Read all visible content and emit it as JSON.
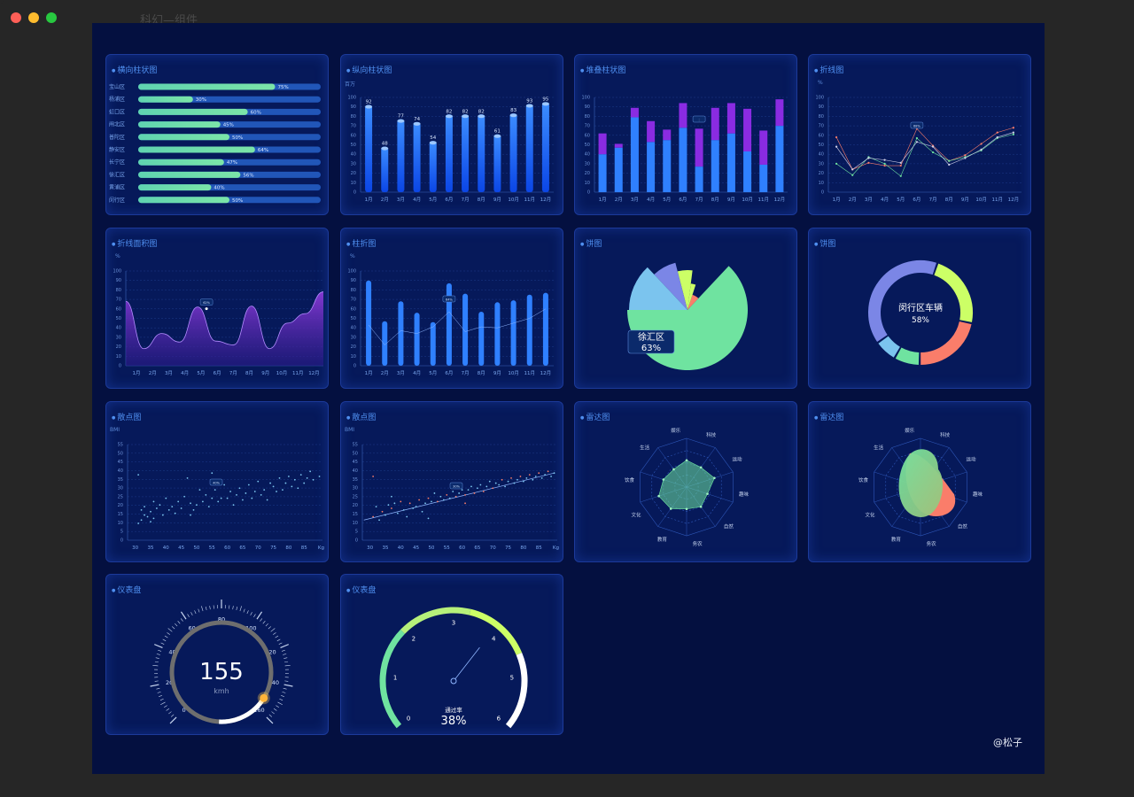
{
  "window": {
    "title": "科幻—组件"
  },
  "watermark": "@松子",
  "colors": {
    "bg": "#041040",
    "panel": "#06195a",
    "blue": "#2f80ff",
    "green": "#6fe3a0",
    "purple": "#8a2be2",
    "salmon": "#fa7d6a",
    "lime": "#ccff66",
    "slate": "#7b86e6",
    "sky": "#7bc4ee"
  },
  "panels": {
    "hbar": {
      "title": "横向柱状图"
    },
    "vbar": {
      "title": "纵向柱状图",
      "unit": "百万"
    },
    "stack": {
      "title": "堆叠柱状图"
    },
    "line": {
      "title": "折线图",
      "unit": "%"
    },
    "area": {
      "title": "折线面积图",
      "unit": "%"
    },
    "barline": {
      "title": "柱折图",
      "unit": "%"
    },
    "pie": {
      "title": "饼图"
    },
    "donut": {
      "title": "饼图"
    },
    "scatter1": {
      "title": "散点图",
      "unit": "BMI"
    },
    "scatter2": {
      "title": "散点图",
      "unit": "BMI"
    },
    "radar1": {
      "title": "雷达图"
    },
    "radar2": {
      "title": "雷达图"
    },
    "gauge1": {
      "title": "仪表盘"
    },
    "gauge2": {
      "title": "仪表盘"
    }
  },
  "chart_data": [
    {
      "id": "hbar",
      "type": "bar",
      "orientation": "horizontal",
      "categories": [
        "宝山区",
        "杨浦区",
        "虹口区",
        "闸北区",
        "普陀区",
        "静安区",
        "长宁区",
        "徐汇区",
        "黄浦区",
        "闵行区"
      ],
      "values": [
        75,
        30,
        60,
        45,
        50,
        64,
        47,
        56,
        40,
        50
      ],
      "labels": [
        "75%",
        "30%",
        "60%",
        "45%",
        "50%",
        "64%",
        "47%",
        "56%",
        "40%",
        "50%"
      ],
      "xlim": [
        0,
        100
      ]
    },
    {
      "id": "vbar",
      "type": "bar",
      "categories": [
        "1月",
        "2月",
        "3月",
        "4月",
        "5月",
        "6月",
        "7月",
        "8月",
        "9月",
        "10月",
        "11月",
        "12月"
      ],
      "values": [
        92,
        48,
        77,
        74,
        54,
        82,
        82,
        82,
        61,
        83,
        93,
        95
      ],
      "labels": [
        "92",
        "48",
        "77",
        "74",
        "54",
        "82",
        "82",
        "82",
        "61",
        "83",
        "93",
        "95"
      ],
      "ylabel": "百万",
      "ylim": [
        0,
        100
      ],
      "yticks": [
        "0",
        "10",
        "20",
        "30",
        "40",
        "50",
        "60",
        "70",
        "80",
        "90",
        "100"
      ]
    },
    {
      "id": "stack",
      "type": "bar",
      "stacked": true,
      "categories": [
        "1月",
        "2月",
        "3月",
        "4月",
        "5月",
        "6月",
        "7月",
        "8月",
        "9月",
        "10月",
        "11月",
        "12月"
      ],
      "series": [
        {
          "values": [
            40,
            47,
            79,
            53,
            55,
            68,
            27,
            55,
            62,
            43,
            29,
            70
          ]
        },
        {
          "values": [
            22,
            4,
            10,
            22,
            11,
            26,
            40,
            34,
            32,
            45,
            36,
            28
          ]
        }
      ],
      "tooltip": ":",
      "ylim": [
        0,
        100
      ],
      "yticks": [
        "0",
        "10",
        "20",
        "30",
        "40",
        "50",
        "60",
        "70",
        "80",
        "90",
        "100"
      ]
    },
    {
      "id": "line",
      "type": "line",
      "categories": [
        "1月",
        "2月",
        "3月",
        "4月",
        "5月",
        "6月",
        "7月",
        "8月",
        "9月",
        "10月",
        "11月",
        "12月"
      ],
      "series": [
        {
          "values": [
            58,
            24,
            31,
            28,
            28,
            67,
            49,
            33,
            39,
            51,
            63,
            68
          ]
        },
        {
          "values": [
            30,
            18,
            37,
            30,
            17,
            57,
            42,
            33,
            37,
            44,
            57,
            61
          ]
        },
        {
          "values": [
            48,
            24,
            36,
            34,
            31,
            53,
            48,
            29,
            36,
            45,
            58,
            63
          ]
        }
      ],
      "ylabel": "%",
      "ylim": [
        0,
        100
      ],
      "tooltip": "68%",
      "yticks": [
        "0",
        "10",
        "20",
        "30",
        "40",
        "50",
        "60",
        "70",
        "80",
        "90",
        "100"
      ]
    },
    {
      "id": "area",
      "type": "area",
      "categories": [
        "1月",
        "2月",
        "3月",
        "4月",
        "5月",
        "6月",
        "7月",
        "8月",
        "9月",
        "10月",
        "11月",
        "12月"
      ],
      "values": [
        68,
        18,
        34,
        25,
        62,
        26,
        22,
        63,
        18,
        45,
        55,
        78
      ],
      "ylabel": "%",
      "ylim": [
        0,
        100
      ],
      "tooltip": "62%",
      "yticks": [
        "0",
        "10",
        "20",
        "30",
        "40",
        "50",
        "60",
        "70",
        "80",
        "90",
        "100"
      ]
    },
    {
      "id": "barline",
      "type": "bar+line",
      "categories": [
        "1月",
        "2月",
        "3月",
        "4月",
        "5月",
        "6月",
        "7月",
        "8月",
        "9月",
        "10月",
        "11月",
        "12月"
      ],
      "bars": [
        90,
        47,
        68,
        56,
        46,
        87,
        76,
        57,
        67,
        69,
        75,
        77
      ],
      "line": [
        43,
        22,
        37,
        34,
        41,
        57,
        36,
        41,
        40,
        45,
        50,
        60
      ],
      "ylabel": "%",
      "ylim": [
        0,
        100
      ],
      "tooltip": "64%",
      "yticks": [
        "0",
        "10",
        "20",
        "30",
        "40",
        "50",
        "60",
        "70",
        "80",
        "90",
        "100"
      ]
    },
    {
      "id": "pie",
      "type": "pie",
      "rose": true,
      "slices": [
        {
          "value": 63,
          "radius": 68
        },
        {
          "value": 7,
          "radius": 18
        },
        {
          "value": 3,
          "radius": 30
        },
        {
          "value": 6,
          "radius": 45
        },
        {
          "value": 8,
          "radius": 55
        },
        {
          "value": 13,
          "radius": 66
        }
      ],
      "tooltip": {
        "name": "徐汇区",
        "value": "63%"
      }
    },
    {
      "id": "donut",
      "type": "pie",
      "donut": true,
      "slices": [
        {
          "value": 23
        },
        {
          "value": 22
        },
        {
          "value": 8
        },
        {
          "value": 7
        },
        {
          "value": 40
        }
      ],
      "center_label": "闵行区车辆",
      "center_value": "58%"
    },
    {
      "id": "scatter1",
      "type": "scatter",
      "xlabel": "Kg",
      "ylabel": "BMI",
      "xlim": [
        27.5,
        91
      ],
      "ylim": [
        0,
        57
      ],
      "xticks": [
        "30",
        "35",
        "40",
        "45",
        "50",
        "55",
        "60",
        "65",
        "70",
        "75",
        "80",
        "85"
      ],
      "yticks": [
        "0",
        "5",
        "10",
        "15",
        "20",
        "25",
        "30",
        "35",
        "40",
        "45",
        "50",
        "55"
      ],
      "tooltip": "40%",
      "points": [
        [
          31,
          10
        ],
        [
          31,
          39
        ],
        [
          32,
          12
        ],
        [
          32,
          18
        ],
        [
          33,
          15
        ],
        [
          33,
          20
        ],
        [
          34,
          14
        ],
        [
          35,
          17
        ],
        [
          35,
          11
        ],
        [
          36,
          23
        ],
        [
          36,
          13
        ],
        [
          37,
          19
        ],
        [
          38,
          21
        ],
        [
          39,
          15
        ],
        [
          40,
          25
        ],
        [
          41,
          18
        ],
        [
          42,
          20
        ],
        [
          43,
          16
        ],
        [
          44,
          23
        ],
        [
          45,
          19
        ],
        [
          46,
          26
        ],
        [
          47,
          37
        ],
        [
          48,
          15
        ],
        [
          48,
          22
        ],
        [
          49,
          18
        ],
        [
          50,
          21
        ],
        [
          51,
          30
        ],
        [
          52,
          23
        ],
        [
          53,
          27
        ],
        [
          54,
          20
        ],
        [
          55,
          25
        ],
        [
          55,
          40
        ],
        [
          56,
          30
        ],
        [
          57,
          23
        ],
        [
          58,
          25
        ],
        [
          59,
          33
        ],
        [
          60,
          25
        ],
        [
          61,
          29
        ],
        [
          62,
          21
        ],
        [
          63,
          27
        ],
        [
          64,
          31
        ],
        [
          65,
          24
        ],
        [
          66,
          28
        ],
        [
          67,
          33
        ],
        [
          68,
          25
        ],
        [
          69,
          29
        ],
        [
          70,
          35
        ],
        [
          71,
          27
        ],
        [
          72,
          30
        ],
        [
          73,
          24
        ],
        [
          74,
          34
        ],
        [
          75,
          32
        ],
        [
          76,
          29
        ],
        [
          77,
          37
        ],
        [
          78,
          30
        ],
        [
          79,
          34
        ],
        [
          80,
          38
        ],
        [
          81,
          32
        ],
        [
          82,
          36
        ],
        [
          83,
          31
        ],
        [
          84,
          39
        ],
        [
          85,
          34
        ],
        [
          86,
          37
        ],
        [
          87,
          41
        ],
        [
          88,
          36
        ],
        [
          90,
          38
        ]
      ]
    },
    {
      "id": "scatter2",
      "type": "scatter",
      "trendline": true,
      "xlabel": "Kg",
      "ylabel": "BMI",
      "xlim": [
        27.5,
        91
      ],
      "ylim": [
        0,
        57
      ],
      "xticks": [
        "30",
        "35",
        "40",
        "45",
        "50",
        "55",
        "60",
        "65",
        "70",
        "75",
        "80",
        "85"
      ],
      "yticks": [
        "0",
        "5",
        "10",
        "15",
        "20",
        "25",
        "30",
        "35",
        "40",
        "45",
        "50",
        "55"
      ],
      "tooltip": "30%",
      "trend": [
        [
          28,
          12
        ],
        [
          90,
          40
        ]
      ],
      "points": [
        [
          31,
          14
        ],
        [
          32,
          20
        ],
        [
          33,
          12
        ],
        [
          34,
          17
        ],
        [
          35,
          15
        ],
        [
          36,
          21
        ],
        [
          37,
          19
        ],
        [
          38,
          22
        ],
        [
          39,
          16
        ],
        [
          40,
          23
        ],
        [
          41,
          18
        ],
        [
          42,
          14
        ],
        [
          43,
          22
        ],
        [
          44,
          19
        ],
        [
          45,
          20
        ],
        [
          46,
          24
        ],
        [
          47,
          17
        ],
        [
          48,
          22
        ],
        [
          49,
          25
        ],
        [
          50,
          23
        ],
        [
          51,
          28
        ],
        [
          52,
          23
        ],
        [
          53,
          26
        ],
        [
          54,
          24
        ],
        [
          55,
          27
        ],
        [
          56,
          25
        ],
        [
          57,
          29
        ],
        [
          58,
          26
        ],
        [
          59,
          28
        ],
        [
          60,
          30
        ],
        [
          61,
          27
        ],
        [
          62,
          30
        ],
        [
          63,
          32
        ],
        [
          64,
          28
        ],
        [
          65,
          31
        ],
        [
          66,
          33
        ],
        [
          67,
          29
        ],
        [
          68,
          32
        ],
        [
          69,
          35
        ],
        [
          70,
          31
        ],
        [
          71,
          34
        ],
        [
          72,
          33
        ],
        [
          73,
          36
        ],
        [
          74,
          32
        ],
        [
          75,
          35
        ],
        [
          76,
          37
        ],
        [
          77,
          34
        ],
        [
          78,
          36
        ],
        [
          79,
          38
        ],
        [
          80,
          35
        ],
        [
          81,
          37
        ],
        [
          82,
          39
        ],
        [
          83,
          36
        ],
        [
          84,
          38
        ],
        [
          85,
          40
        ],
        [
          86,
          37
        ],
        [
          87,
          39
        ],
        [
          88,
          41
        ],
        [
          89,
          38
        ],
        [
          90,
          40
        ],
        [
          31,
          38
        ],
        [
          37,
          26
        ],
        [
          49,
          13
        ],
        [
          61,
          22
        ]
      ]
    },
    {
      "id": "radar1",
      "type": "radar",
      "indicators": [
        "娱乐",
        "科技",
        "运动",
        "趣味",
        "自然",
        "务农",
        "教育",
        "文化",
        "饮食",
        "生活"
      ],
      "values": [
        0.55,
        0.5,
        0.6,
        0.45,
        0.5,
        0.45,
        0.55,
        0.6,
        0.5,
        0.45
      ]
    },
    {
      "id": "radar2",
      "type": "radar",
      "blob": true,
      "indicators": [
        "娱乐",
        "科技",
        "运动",
        "趣味",
        "自然",
        "务农",
        "教育",
        "文化",
        "饮食",
        "生活"
      ]
    },
    {
      "id": "gauge1",
      "type": "gauge",
      "value": 155,
      "unit": "kmh",
      "min": 0,
      "max": 160,
      "ticks": [
        "0",
        "20",
        "40",
        "60",
        "80",
        "100",
        "120",
        "140",
        "160"
      ]
    },
    {
      "id": "gauge2",
      "type": "gauge",
      "value": 38,
      "label": "通过率",
      "value_label": "38%",
      "ticks": [
        "0",
        "1",
        "2",
        "3",
        "4",
        "5",
        "6"
      ]
    }
  ]
}
